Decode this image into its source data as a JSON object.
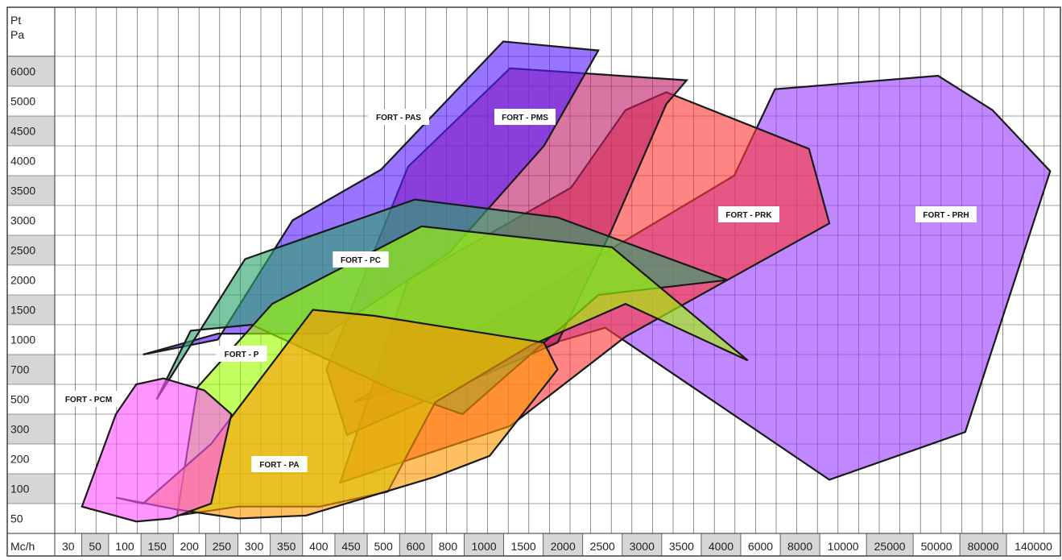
{
  "chart_data": {
    "type": "area",
    "title": "",
    "xlabel": "Mc/h",
    "ylabel": "Pt Pa",
    "x_ticks": [
      "30",
      "50",
      "100",
      "150",
      "200",
      "250",
      "300",
      "350",
      "400",
      "450",
      "500",
      "600",
      "800",
      "1000",
      "1500",
      "2000",
      "2500",
      "3000",
      "3500",
      "4000",
      "6000",
      "8000",
      "10000",
      "25000",
      "50000",
      "80000",
      "140000"
    ],
    "y_ticks": [
      "50",
      "100",
      "200",
      "300",
      "500",
      "700",
      "1000",
      "1500",
      "2000",
      "2500",
      "3000",
      "3500",
      "4000",
      "4500",
      "5000",
      "6000"
    ],
    "grid": true,
    "legend": "none",
    "series": [
      {
        "name": "FORT - PRH",
        "color": "#9b3dff",
        "points": [
          [
            440,
            4.4
          ],
          [
            810,
            6.9
          ],
          [
            1140,
            1.8
          ],
          [
            1340,
            3.4
          ],
          [
            1465,
            12.15
          ],
          [
            1380,
            14.2
          ],
          [
            1300,
            15.35
          ],
          [
            1060,
            14.9
          ],
          [
            1000,
            12.0
          ]
        ]
      },
      {
        "name": "FORT - PRK",
        "color": "#ff3a3a",
        "points": [
          [
            670,
            3.6
          ],
          [
            840,
            6.6
          ],
          [
            1140,
            10.4
          ],
          [
            1110,
            12.9
          ],
          [
            900,
            14.8
          ],
          [
            840,
            14.2
          ],
          [
            760,
            11.6
          ],
          [
            520,
            8.5
          ],
          [
            420,
            1.7
          ]
        ]
      },
      {
        "name": "FORT - PMS",
        "color": "#c0206a",
        "points": [
          [
            430,
            3.3
          ],
          [
            740,
            6.4
          ],
          [
            820,
            10.2
          ],
          [
            900,
            14.4
          ],
          [
            930,
            15.2
          ],
          [
            670,
            15.6
          ],
          [
            520,
            12.3
          ],
          [
            400,
            5.5
          ]
        ]
      },
      {
        "name": "FORT - PAS",
        "color": "#5a1fff",
        "points": [
          [
            130,
            6.0
          ],
          [
            240,
            6.7
          ],
          [
            400,
            6.7
          ],
          [
            580,
            9.4
          ],
          [
            720,
            13.0
          ],
          [
            800,
            16.2
          ],
          [
            660,
            16.5
          ],
          [
            480,
            12.2
          ],
          [
            350,
            10.5
          ],
          [
            240,
            6.5
          ]
        ]
      },
      {
        "name": "FORT - PC",
        "color": "#2aa36a",
        "points": [
          [
            150,
            4.5
          ],
          [
            200,
            6.8
          ],
          [
            290,
            7.0
          ],
          [
            500,
            4.8
          ],
          [
            600,
            4.0
          ],
          [
            800,
            8.0
          ],
          [
            990,
            8.5
          ],
          [
            740,
            10.6
          ],
          [
            530,
            11.2
          ],
          [
            280,
            9.2
          ]
        ]
      },
      {
        "name": "FORT - P",
        "color": "#a0ff00",
        "points": [
          [
            180,
            0.6
          ],
          [
            270,
            0.9
          ],
          [
            390,
            0.9
          ],
          [
            490,
            1.4
          ],
          [
            560,
            4.4
          ],
          [
            700,
            6.3
          ],
          [
            840,
            7.7
          ],
          [
            1020,
            5.8
          ],
          [
            820,
            9.6
          ],
          [
            540,
            10.3
          ],
          [
            320,
            7.7
          ],
          [
            210,
            4.9
          ]
        ]
      },
      {
        "name": "FORT - PA",
        "color": "#ff9a00",
        "points": [
          [
            90,
            1.2
          ],
          [
            180,
            0.8
          ],
          [
            270,
            0.5
          ],
          [
            370,
            0.6
          ],
          [
            560,
            1.9
          ],
          [
            640,
            2.6
          ],
          [
            740,
            5.5
          ],
          [
            720,
            6.4
          ],
          [
            470,
            7.3
          ],
          [
            380,
            7.5
          ],
          [
            230,
            3.0
          ],
          [
            130,
            1.0
          ]
        ]
      },
      {
        "name": "FORT - PCM",
        "color": "#ff55ff",
        "points": [
          [
            40,
            0.9
          ],
          [
            90,
            4.0
          ],
          [
            120,
            5.0
          ],
          [
            160,
            5.2
          ],
          [
            220,
            4.8
          ],
          [
            260,
            4.0
          ],
          [
            230,
            1.0
          ],
          [
            170,
            0.5
          ],
          [
            120,
            0.4
          ]
        ]
      }
    ]
  }
}
